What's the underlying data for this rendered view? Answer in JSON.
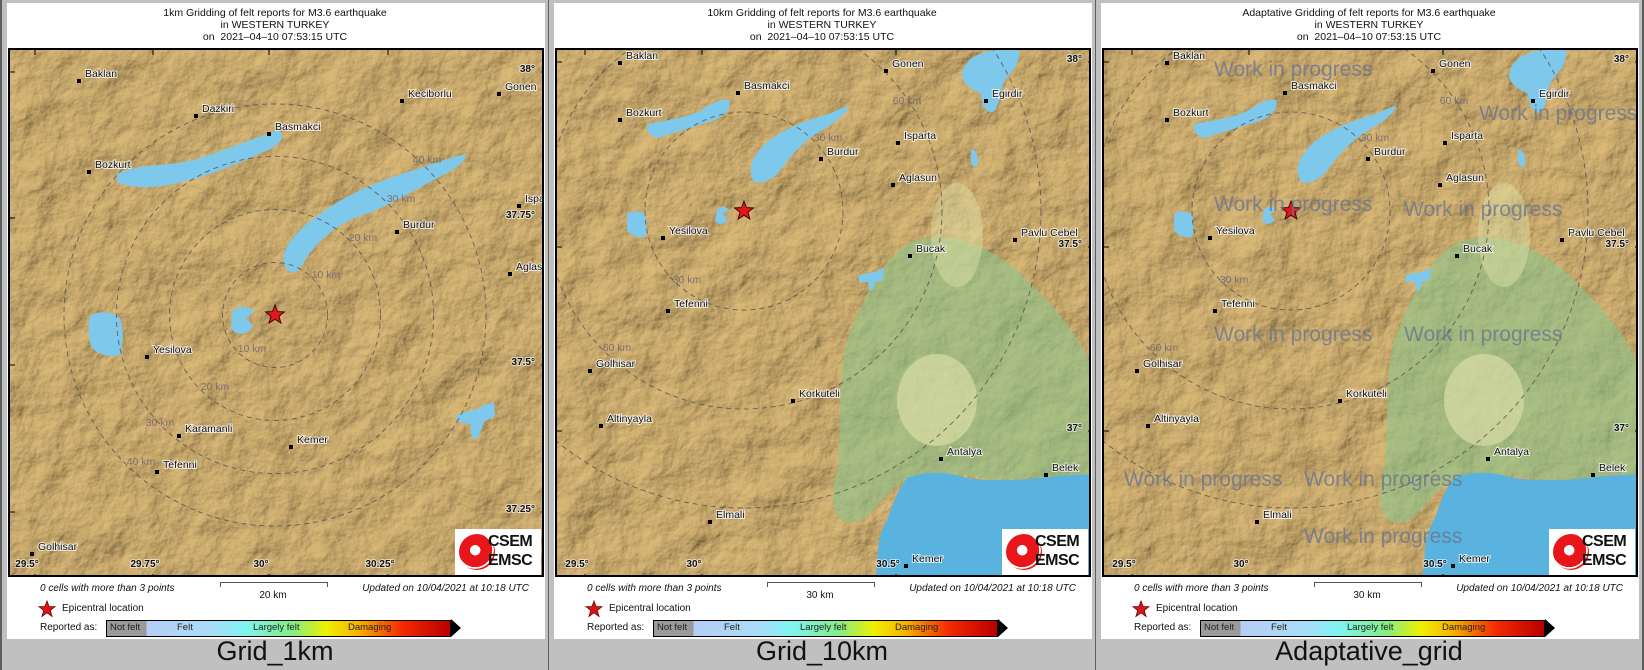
{
  "colors": {
    "water": "#7ec8ec",
    "sea": "#5ab2df",
    "epicenter": "#e3161b",
    "lowland": "#8cc48c",
    "frame_bg": "#c0c0c0",
    "outer_bg": "#5e5e5e",
    "watermark": "#6973a0"
  },
  "legend": {
    "epicentral": "Epicentral location",
    "reported_as": "Reported as:",
    "scale_labels": [
      "Not felt",
      "Felt",
      "Largely felt",
      "Damaging"
    ],
    "star_icon": "red-star"
  },
  "logo": {
    "line1": "CSEM",
    "line2": "EMSC"
  },
  "panels": [
    {
      "title": [
        "1km Gridding of felt reports for M3.6 earthquake",
        "in WESTERN TURKEY",
        "on  2021–04–10 07:53:15 UTC"
      ],
      "label": "Grid_1km",
      "cities": [
        "Baklan",
        "Dazkiri",
        "Basmakci",
        "Keciborlu",
        "Gonen",
        "Bozkurt",
        "Isparta",
        "Burdur",
        "Aglasun",
        "Yesilova",
        "Karamanli",
        "Kemer",
        "Tefenni",
        "Golhisar"
      ],
      "circle_labels": [
        "10 km",
        "10 km",
        "20 km",
        "20 km",
        "30 km",
        "30 km",
        "40 km",
        "40 km"
      ],
      "lon_ticks": [
        "29.5°",
        "29.75°",
        "30°",
        "30.25°"
      ],
      "lat_ticks": [
        "38°",
        "37.75°",
        "37.5°",
        "37.25°"
      ],
      "footer": {
        "cells": "0 cells with more than 3 points",
        "scale": "20 km",
        "updated": "Updated on 10/04/2021 at 10:18 UTC"
      },
      "watermark": null
    },
    {
      "title": [
        "10km Gridding of felt reports for M3.6 earthquake",
        "in WESTERN TURKEY",
        "on  2021–04–10 07:53:15 UTC"
      ],
      "label": "Grid_10km",
      "cities": [
        "Baklan",
        "Basmakci",
        "Gonen",
        "Egirdir",
        "Bozkurt",
        "Isparta",
        "Burdur",
        "Aglasun",
        "Yesilova",
        "Bucak",
        "Pavlu Cebel",
        "Tefenni",
        "Golhisar",
        "Korkuteli",
        "Altinyayla",
        "Antalya",
        "Belek",
        "Elmali",
        "Kemer"
      ],
      "circle_labels": [
        "30 km",
        "30 km",
        "60 km",
        "60 km"
      ],
      "lon_ticks": [
        "29.5°",
        "30°",
        "30.5°"
      ],
      "lat_ticks": [
        "38°",
        "37.5°",
        "37°"
      ],
      "footer": {
        "cells": "0 cells with more than 3 points",
        "scale": "30 km",
        "updated": "Updated on 10/04/2021 at 10:18 UTC"
      },
      "watermark": null
    },
    {
      "title": [
        "Adaptative Gridding of felt reports for M3.6 earthquake",
        "in WESTERN TURKEY",
        "on  2021–04–10 07:53:15 UTC"
      ],
      "label": "Adaptative_grid",
      "cities": [
        "Baklan",
        "Basmakci",
        "Gonen",
        "Egirdir",
        "Bozkurt",
        "Isparta",
        "Burdur",
        "Aglasun",
        "Yesilova",
        "Bucak",
        "Pavlu Cebel",
        "Tefenni",
        "Golhisar",
        "Korkuteli",
        "Altinyayla",
        "Antalya",
        "Belek",
        "Elmali",
        "Kemer"
      ],
      "circle_labels": [
        "30 km",
        "30 km",
        "60 km",
        "60 km"
      ],
      "lon_ticks": [
        "29.5°",
        "30°",
        "30.5°"
      ],
      "lat_ticks": [
        "38°",
        "37.5°",
        "37°"
      ],
      "footer": {
        "cells": "0 cells with more than 3 points",
        "scale": "30 km",
        "updated": "Updated on 10/04/2021 at 10:18 UTC"
      },
      "watermark": "Work in progress"
    }
  ]
}
